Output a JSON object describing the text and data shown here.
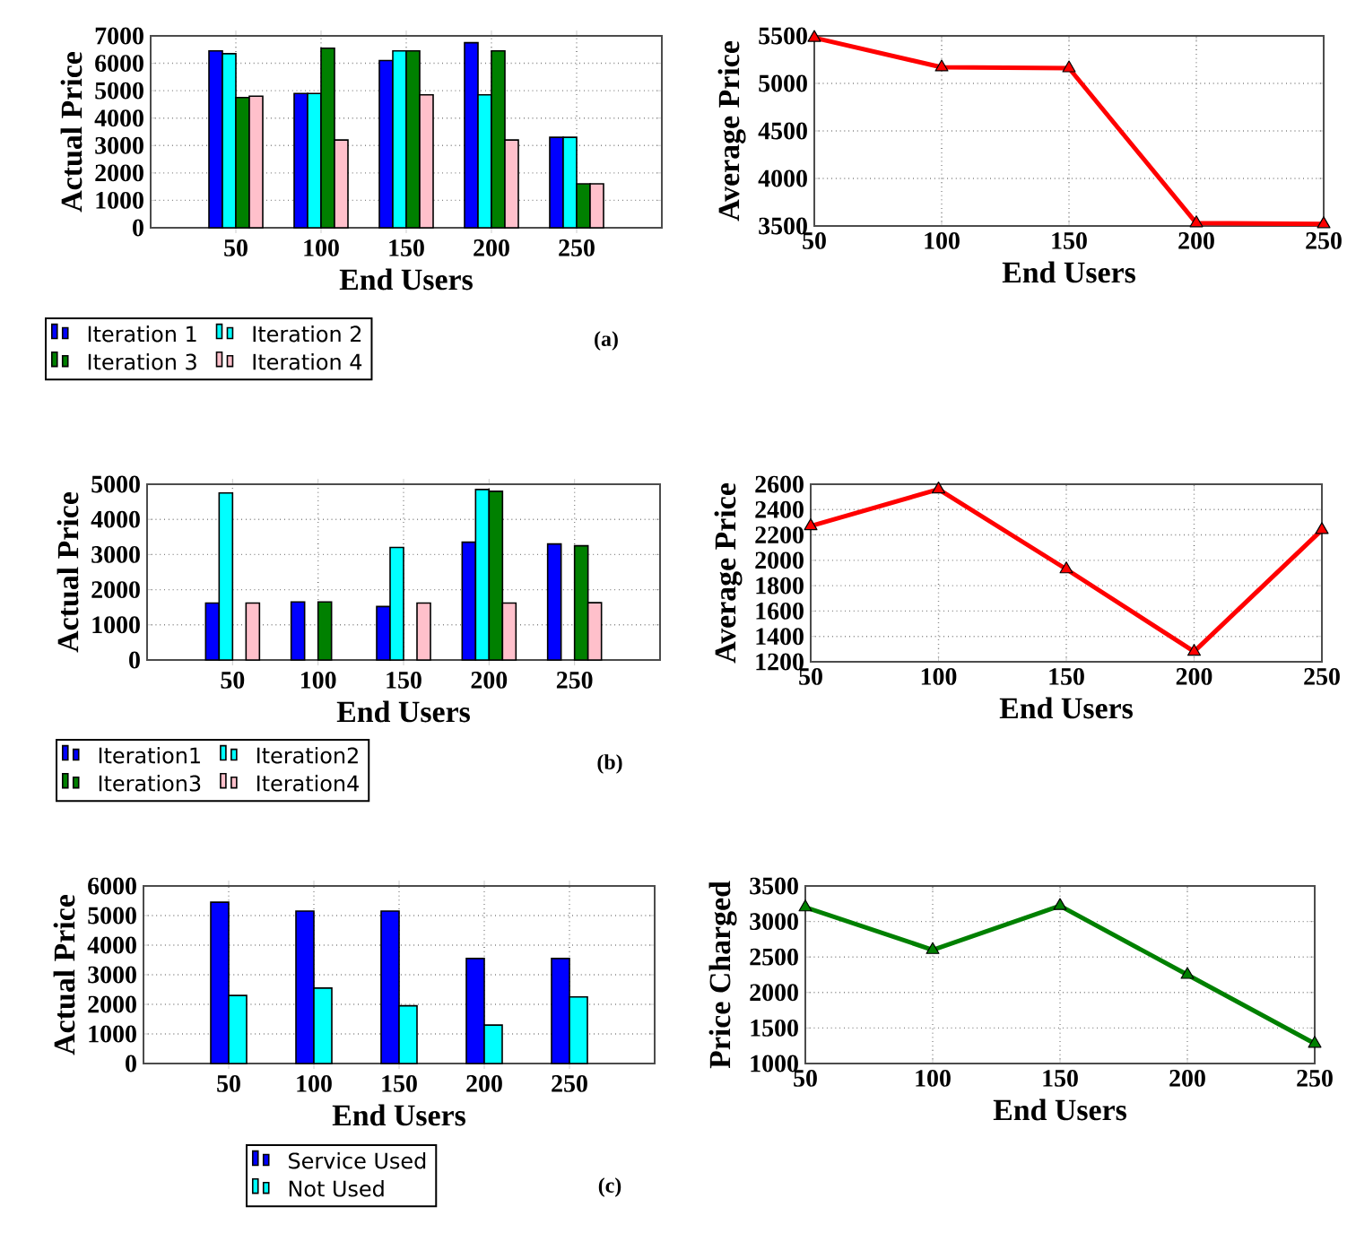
{
  "chart_data": [
    {
      "type": "bar",
      "xlabel": "End Users",
      "ylabel": "Actual Price",
      "x": [
        50,
        100,
        150,
        200,
        250
      ],
      "xlim": [
        0,
        300
      ],
      "xticks": [
        50,
        100,
        150,
        200,
        250
      ],
      "ylim": [
        0,
        7000
      ],
      "yticks": [
        0,
        1000,
        2000,
        3000,
        4000,
        5000,
        6000,
        7000
      ],
      "grid": true,
      "legend": "bottom",
      "annotations": [
        "(a)"
      ],
      "series": [
        {
          "name": "Iteration 1",
          "color": "#0000ff",
          "values": [
            6450,
            4900,
            6100,
            6750,
            3300
          ]
        },
        {
          "name": "Iteration 2",
          "color": "#00ffff",
          "values": [
            6350,
            4900,
            6450,
            4850,
            3300
          ]
        },
        {
          "name": "Iteration 3",
          "color": "#008000",
          "values": [
            4750,
            6550,
            6450,
            6450,
            1600
          ]
        },
        {
          "name": "Iteration 4",
          "color": "#ffc0cb",
          "values": [
            4800,
            3200,
            4850,
            3200,
            1600
          ]
        }
      ]
    },
    {
      "type": "line",
      "xlabel": "End Users",
      "ylabel": "Average Price",
      "x": [
        50,
        100,
        150,
        200,
        250
      ],
      "xlim": [
        50,
        250
      ],
      "xticks": [
        50,
        100,
        150,
        200,
        250
      ],
      "ylim": [
        3500,
        5500
      ],
      "yticks": [
        3500,
        4000,
        4500,
        5000,
        5500
      ],
      "grid": true,
      "marker": "triangle",
      "line_style": "solid",
      "series": [
        {
          "color": "#ff0000",
          "values": [
            5480,
            5170,
            5160,
            3530,
            3520
          ]
        }
      ]
    },
    {
      "type": "bar",
      "xlabel": "End Users",
      "ylabel": "Actual Price",
      "x": [
        50,
        100,
        150,
        200,
        250
      ],
      "xlim": [
        0,
        300
      ],
      "xticks": [
        50,
        100,
        150,
        200,
        250
      ],
      "ylim": [
        0,
        5000
      ],
      "yticks": [
        0,
        1000,
        2000,
        3000,
        4000,
        5000
      ],
      "grid": true,
      "legend": "bottom",
      "annotations": [
        "(b)"
      ],
      "series": [
        {
          "name": "Iteration1",
          "color": "#0000ff",
          "values": [
            1620,
            1650,
            1520,
            3350,
            3300
          ]
        },
        {
          "name": "Iteration2",
          "color": "#00ffff",
          "values": [
            4750,
            null,
            3200,
            4850,
            null
          ]
        },
        {
          "name": "Iteration3",
          "color": "#008000",
          "values": [
            null,
            1650,
            null,
            4800,
            3250
          ]
        },
        {
          "name": "Iteration4",
          "color": "#ffc0cb",
          "values": [
            1620,
            null,
            1620,
            1620,
            1630
          ]
        }
      ]
    },
    {
      "type": "line",
      "xlabel": "End Users",
      "ylabel": "Average Price",
      "x": [
        50,
        100,
        150,
        200,
        250
      ],
      "xlim": [
        50,
        250
      ],
      "xticks": [
        50,
        100,
        150,
        200,
        250
      ],
      "ylim": [
        1200,
        2600
      ],
      "yticks": [
        1200,
        1400,
        1600,
        1800,
        2000,
        2200,
        2400,
        2600
      ],
      "grid": true,
      "marker": "triangle",
      "line_style": "solid",
      "series": [
        {
          "color": "#ff0000",
          "values": [
            2270,
            2560,
            1930,
            1280,
            2240
          ]
        }
      ]
    },
    {
      "type": "bar",
      "xlabel": "End Users",
      "ylabel": "Actual Price",
      "x": [
        50,
        100,
        150,
        200,
        250
      ],
      "xlim": [
        0,
        300
      ],
      "xticks": [
        50,
        100,
        150,
        200,
        250
      ],
      "ylim": [
        0,
        6000
      ],
      "yticks": [
        0,
        1000,
        2000,
        3000,
        4000,
        5000,
        6000
      ],
      "grid": true,
      "legend": "bottom",
      "annotations": [
        "(c)"
      ],
      "series": [
        {
          "name": "Service Used",
          "color": "#0000ff",
          "values": [
            5450,
            5150,
            5150,
            3550,
            3550
          ]
        },
        {
          "name": "Not Used",
          "color": "#00ffff",
          "values": [
            2300,
            2550,
            1950,
            1300,
            2250
          ]
        }
      ]
    },
    {
      "type": "line",
      "xlabel": "End Users",
      "ylabel": "Price Charged",
      "x": [
        50,
        100,
        150,
        200,
        250
      ],
      "xlim": [
        50,
        250
      ],
      "xticks": [
        50,
        100,
        150,
        200,
        250
      ],
      "ylim": [
        1000,
        3500
      ],
      "yticks": [
        1000,
        1500,
        2000,
        2500,
        3000,
        3500
      ],
      "grid": true,
      "marker": "triangle",
      "line_style": "solid",
      "series": [
        {
          "color": "#008000",
          "values": [
            3200,
            2600,
            3220,
            2250,
            1280
          ]
        }
      ]
    }
  ]
}
